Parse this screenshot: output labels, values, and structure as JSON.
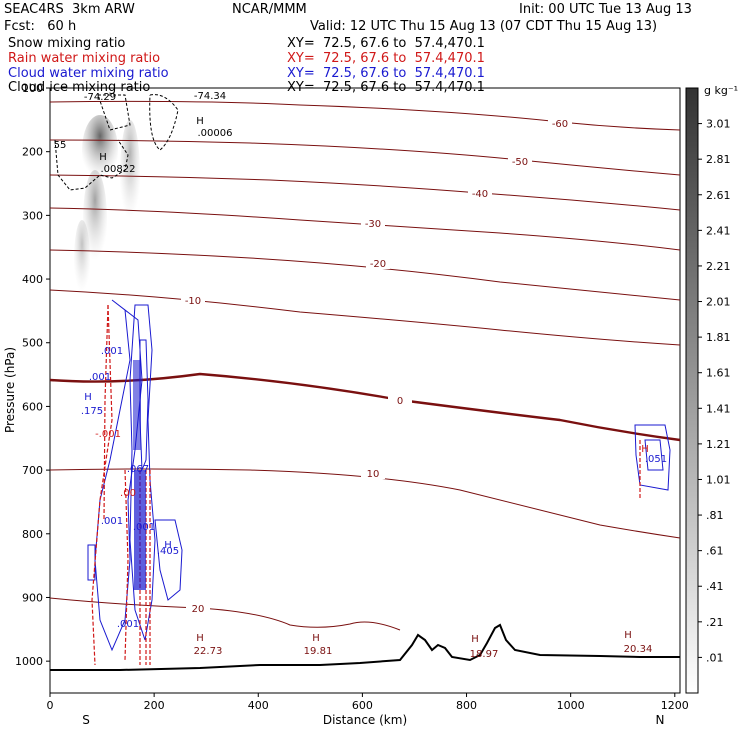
{
  "header": {
    "model": "SEAC4RS  3km ARW",
    "org": "NCAR/MMM",
    "init": "Init: 00 UTC Tue 13 Aug 13",
    "fcst": "Fcst:   60 h",
    "valid": "Valid: 12 UTC Thu 15 Aug 13 (07 CDT Thu 15 Aug 13)"
  },
  "legend": [
    {
      "label": "Snow mixing ratio",
      "xy": "XY=  72.5, 67.6 to  57.4,470.1",
      "color": "#000000"
    },
    {
      "label": "Rain water mixing ratio",
      "xy": "XY=  72.5, 67.6 to  57.4,470.1",
      "color": "#d01818"
    },
    {
      "label": "Cloud water mixing ratio",
      "xy": "XY=  72.5, 67.6 to  57.4,470.1",
      "color": "#1a1ad0"
    },
    {
      "label": "Cloud ice mixing ratio",
      "xy": "XY=  72.5, 67.6 to  57.4,470.1",
      "color": "#7a1010"
    }
  ],
  "colorbar": {
    "unit": "g kg⁻¹",
    "levels": [
      "3.01",
      "2.81",
      "2.61",
      "2.41",
      "2.21",
      "2.01",
      "1.81",
      "1.61",
      "1.41",
      "1.21",
      "1.01",
      ".81",
      ".61",
      ".41",
      ".21",
      ".01"
    ]
  },
  "chart_data": {
    "type": "contour cross-section",
    "xlabel": "Distance (km)",
    "ylabel": "Pressure (hPa)",
    "xlim": [
      0,
      1210
    ],
    "ylim": [
      1050,
      100
    ],
    "xticks": [
      0,
      200,
      400,
      600,
      800,
      1000,
      1200
    ],
    "yticks": [
      1000,
      900,
      800,
      700,
      600,
      500,
      400,
      300,
      200,
      100
    ],
    "x_end_labels": {
      "left": "S",
      "right": "N"
    },
    "isotherms": [
      {
        "label": "-60",
        "color": "#7a1010"
      },
      {
        "label": "-50",
        "color": "#7a1010"
      },
      {
        "label": "-40",
        "color": "#7a1010"
      },
      {
        "label": "-30",
        "color": "#7a1010"
      },
      {
        "label": "-20",
        "color": "#7a1010"
      },
      {
        "label": "-10",
        "color": "#7a1010"
      },
      {
        "label": "0",
        "color": "#7a1010",
        "bold": true
      },
      {
        "label": "10",
        "color": "#7a1010"
      },
      {
        "label": "20",
        "color": "#7a1010"
      }
    ],
    "text_labels": [
      "-74.29",
      "-74.34",
      "55",
      "H",
      ".00006",
      ".00822",
      "H",
      ".001",
      ".001",
      ".175",
      ".001",
      "H",
      ".067",
      ".00",
      ".001",
      "H",
      ".405",
      ".001",
      "H",
      "-.001",
      ".051",
      "H",
      "22.73",
      "H",
      "19.81",
      "H",
      "18.97",
      "H",
      "20.34"
    ]
  }
}
